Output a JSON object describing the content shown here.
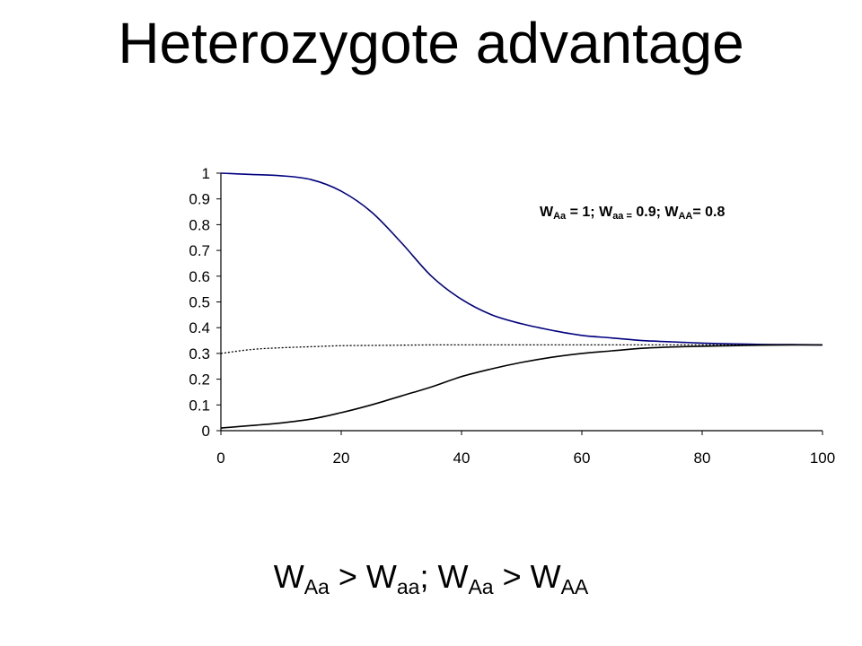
{
  "title": "Heterozygote advantage",
  "annotation": [
    {
      "text": "W",
      "sub": false
    },
    {
      "text": "Aa",
      "sub": true
    },
    {
      "text": " = 1; W",
      "sub": false
    },
    {
      "text": "aa =",
      "sub": true
    },
    {
      "text": " 0.9; W",
      "sub": false
    },
    {
      "text": "AA",
      "sub": true
    },
    {
      "text": "= 0.8",
      "sub": false
    }
  ],
  "caption": [
    {
      "text": "W",
      "sub": false
    },
    {
      "text": "Aa",
      "sub": true
    },
    {
      "text": " > W",
      "sub": false
    },
    {
      "text": "aa",
      "sub": true
    },
    {
      "text": "; W",
      "sub": false
    },
    {
      "text": "Aa",
      "sub": true
    },
    {
      "text": " > W",
      "sub": false
    },
    {
      "text": "AA",
      "sub": true
    }
  ],
  "chart_data": {
    "type": "line",
    "xlim": [
      0,
      100
    ],
    "ylim": [
      0,
      1
    ],
    "x_ticks": [
      "0",
      "20",
      "40",
      "60",
      "80",
      "100"
    ],
    "y_ticks": [
      "0",
      "0.1",
      "0.2",
      "0.3",
      "0.4",
      "0.5",
      "0.6",
      "0.7",
      "0.8",
      "0.9",
      "1"
    ],
    "grid": false,
    "series": [
      {
        "style": "solid",
        "color": "#000080",
        "x": [
          0,
          5,
          10,
          15,
          20,
          25,
          30,
          35,
          40,
          45,
          50,
          55,
          60,
          65,
          70,
          75,
          80,
          85,
          90,
          95,
          100
        ],
        "y": [
          1.0,
          0.995,
          0.99,
          0.975,
          0.93,
          0.85,
          0.73,
          0.6,
          0.51,
          0.45,
          0.415,
          0.39,
          0.37,
          0.36,
          0.35,
          0.345,
          0.34,
          0.337,
          0.335,
          0.334,
          0.333
        ]
      },
      {
        "style": "solid",
        "color": "#000000",
        "x": [
          0,
          5,
          10,
          15,
          20,
          25,
          30,
          35,
          40,
          45,
          50,
          55,
          60,
          65,
          70,
          75,
          80,
          85,
          90,
          95,
          100
        ],
        "y": [
          0.01,
          0.02,
          0.03,
          0.045,
          0.07,
          0.1,
          0.135,
          0.17,
          0.21,
          0.24,
          0.265,
          0.285,
          0.3,
          0.31,
          0.32,
          0.325,
          0.328,
          0.33,
          0.332,
          0.333,
          0.333
        ]
      },
      {
        "style": "dotted",
        "color": "#000000",
        "x": [
          0,
          5,
          10,
          15,
          20,
          25,
          30,
          35,
          40,
          50,
          60,
          70,
          80,
          90,
          100
        ],
        "y": [
          0.3,
          0.315,
          0.322,
          0.326,
          0.33,
          0.331,
          0.332,
          0.333,
          0.333,
          0.333,
          0.333,
          0.333,
          0.333,
          0.333,
          0.333
        ]
      }
    ]
  }
}
